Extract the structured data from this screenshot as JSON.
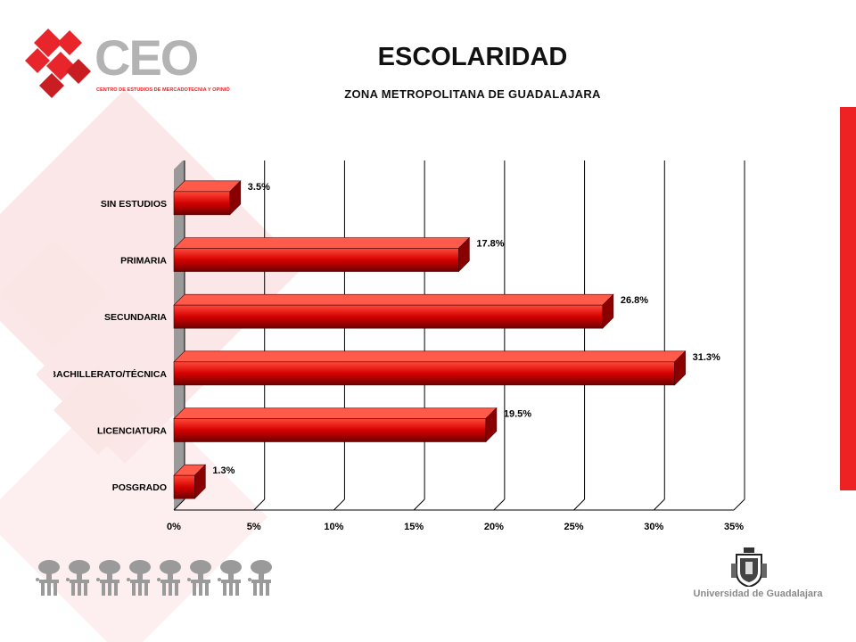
{
  "header": {
    "title": "ESCOLARIDAD",
    "subtitle": "ZONA METROPOLITANA DE GUADALAJARA"
  },
  "logo": {
    "text": "CEO",
    "tagline": "CENTRO DE ESTUDIOS DE MERCADOTECNIA Y OPINIÓN",
    "accent_color": "#e8252a",
    "gray_color": "#b3b3b3"
  },
  "footer": {
    "university": "Universidad de Guadalajara",
    "people_icons": 8
  },
  "chart_data": {
    "type": "bar",
    "orientation": "horizontal",
    "categories": [
      "SIN ESTUDIOS",
      "PRIMARIA",
      "SECUNDARIA",
      "BACHILLERATO/TÉCNICA",
      "LICENCIATURA",
      "POSGRADO"
    ],
    "values": [
      3.5,
      17.8,
      26.8,
      31.3,
      19.5,
      1.3
    ],
    "data_labels": [
      "3.5%",
      "17.8%",
      "26.8%",
      "31.3%",
      "19.5%",
      "1.3%"
    ],
    "xlim": [
      0,
      35
    ],
    "xticks": [
      0,
      5,
      10,
      15,
      20,
      25,
      30,
      35
    ],
    "xtick_labels": [
      "0%",
      "5%",
      "10%",
      "15%",
      "20%",
      "25%",
      "30%",
      "35%"
    ],
    "grid": true,
    "bar_color": "#d40000",
    "style": "3d"
  }
}
